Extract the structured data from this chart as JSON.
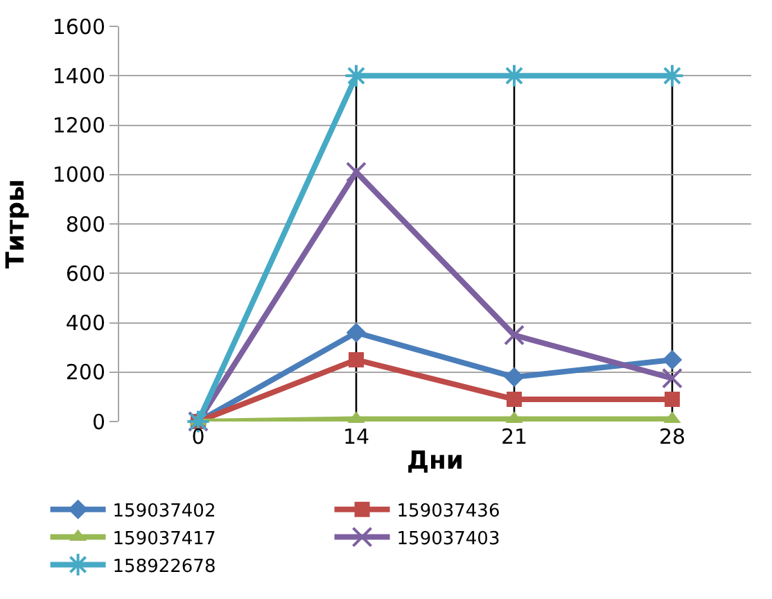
{
  "chart_data": {
    "type": "line",
    "xlabel": "Дни",
    "ylabel": "Титры",
    "categories": [
      "0",
      "14",
      "21",
      "28"
    ],
    "series": [
      {
        "name": "159037402",
        "color": "#4a7ebb",
        "marker": "diamond",
        "values": [
          0,
          360,
          180,
          250
        ]
      },
      {
        "name": "159037436",
        "color": "#be4b48",
        "marker": "square",
        "values": [
          0,
          250,
          90,
          90
        ]
      },
      {
        "name": "159037417",
        "color": "#98b954",
        "marker": "triangle",
        "values": [
          0,
          10,
          10,
          10
        ]
      },
      {
        "name": "159037403",
        "color": "#7d60a0",
        "marker": "cross",
        "values": [
          0,
          1010,
          350,
          175
        ]
      },
      {
        "name": "158922678",
        "color": "#46aac5",
        "marker": "cross",
        "values": [
          0,
          1400,
          1400,
          1400
        ]
      }
    ],
    "ref_lines": [
      {
        "axis": "x",
        "value": "14",
        "color": "#000000"
      },
      {
        "axis": "x",
        "value": "21",
        "color": "#000000"
      },
      {
        "axis": "x",
        "value": "28",
        "color": "#000000"
      }
    ],
    "ylim": [
      0,
      1600
    ],
    "yticks": [
      0,
      200,
      400,
      600,
      800,
      1000,
      1200,
      1400,
      1600
    ],
    "grid": "y",
    "legend": "bottom",
    "line_style": "solid"
  }
}
